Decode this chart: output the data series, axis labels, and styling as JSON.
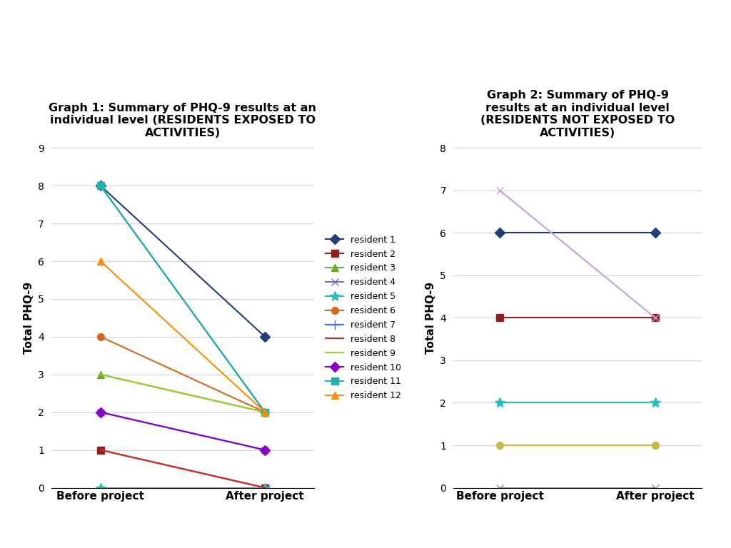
{
  "graph1_title": "Graph 1: Summary of PHQ-9 results at an\nindividual level (RESIDENTS EXPOSED TO\nACTIVITIES)",
  "graph2_title": "Graph 2: Summary of PHQ-9\nresults at an individual level\n(RESIDENTS NOT EXPOSED TO\nACTIVITIES)",
  "ylabel": "Total PHQ-9",
  "xtick_labels": [
    "Before project",
    "After project"
  ],
  "graph1_ylim": [
    0,
    9
  ],
  "graph2_ylim": [
    0,
    8
  ],
  "graph1_yticks": [
    0,
    1,
    2,
    3,
    4,
    5,
    6,
    7,
    8,
    9
  ],
  "graph2_yticks": [
    0,
    1,
    2,
    3,
    4,
    5,
    6,
    7,
    8
  ],
  "residents": [
    {
      "name": "resident 1",
      "color": "#1F3D7A",
      "marker": "D",
      "g1_before": 8,
      "g1_after": 4
    },
    {
      "name": "resident 2",
      "color": "#8B2020",
      "marker": "s",
      "g1_before": 1,
      "g1_after": 0
    },
    {
      "name": "resident 3",
      "color": "#6AAF2E",
      "marker": "^",
      "g1_before": 3,
      "g1_after": 2
    },
    {
      "name": "resident 4",
      "color": "#7B68C8",
      "marker": "x",
      "g1_before": 2,
      "g1_after": 1
    },
    {
      "name": "resident 5",
      "color": "#2ABCBC",
      "marker": "*",
      "g1_before": 0,
      "g1_after": 0
    },
    {
      "name": "resident 6",
      "color": "#D2691E",
      "marker": "o",
      "g1_before": 4,
      "g1_after": 2
    },
    {
      "name": "resident 7",
      "color": "#4169E1",
      "marker": "+",
      "g1_before": 8,
      "g1_after": 2
    },
    {
      "name": "resident 8",
      "color": "#CD3030",
      "marker": "",
      "g1_before": 1,
      "g1_after": 0
    },
    {
      "name": "resident 9",
      "color": "#9ACD32",
      "marker": "",
      "g1_before": 3,
      "g1_after": 2
    },
    {
      "name": "resident 10",
      "color": "#8B00C8",
      "marker": "D",
      "g1_before": 2,
      "g1_after": 1
    },
    {
      "name": "resident 11",
      "color": "#20B2AA",
      "marker": "s",
      "g1_before": 8,
      "g1_after": 2
    },
    {
      "name": "resident 12",
      "color": "#FF8C00",
      "marker": "^",
      "g1_before": 6,
      "g1_after": 2
    }
  ],
  "graph2_residents": [
    {
      "color": "#1F3D7A",
      "marker": "D",
      "before": 6,
      "after": 6
    },
    {
      "color": "#8B2020",
      "marker": "s",
      "before": 4,
      "after": 4
    },
    {
      "color": "#C8A0D8",
      "marker": "x",
      "before": 7,
      "after": 4
    },
    {
      "color": "#2ABCBC",
      "marker": "*",
      "before": 2,
      "after": 2
    },
    {
      "color": "#C8B840",
      "marker": "o",
      "before": 1,
      "after": 1
    },
    {
      "color": "#9B7FBB",
      "marker": "x",
      "before": 0,
      "after": 0
    }
  ]
}
